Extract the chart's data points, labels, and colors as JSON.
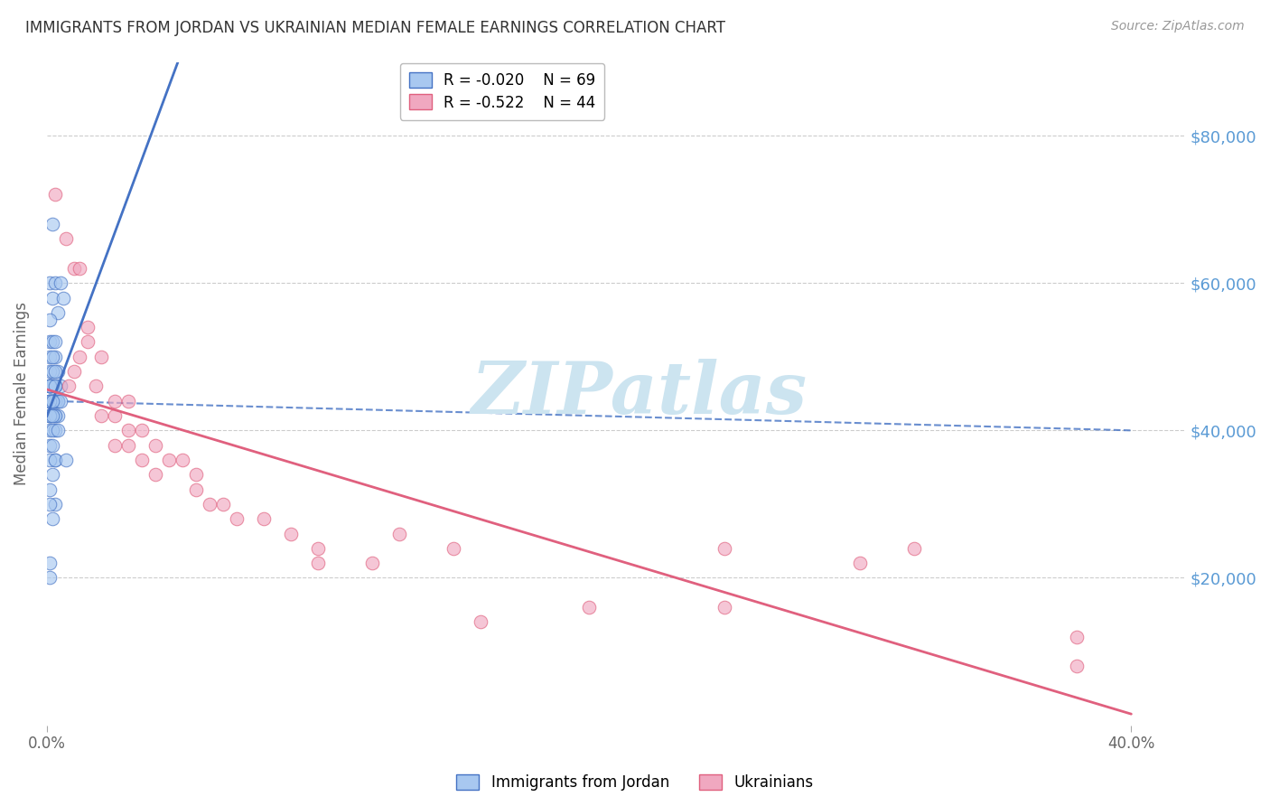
{
  "title": "IMMIGRANTS FROM JORDAN VS UKRAINIAN MEDIAN FEMALE EARNINGS CORRELATION CHART",
  "source": "Source: ZipAtlas.com",
  "ylabel": "Median Female Earnings",
  "y_ticks": [
    20000,
    40000,
    60000,
    80000
  ],
  "y_tick_labels": [
    "$20,000",
    "$40,000",
    "$60,000",
    "$80,000"
  ],
  "xlim": [
    0.0,
    0.42
  ],
  "ylim": [
    0,
    90000
  ],
  "legend1_label": "Immigrants from Jordan",
  "legend2_label": "Ukrainians",
  "R1": "-0.020",
  "N1": "69",
  "R2": "-0.522",
  "N2": "44",
  "color_jordan": "#a8c8f0",
  "color_ukraine": "#f0a8c0",
  "line_jordan_color": "#4472c4",
  "line_ukraine_color": "#e0607e",
  "jordan_points": [
    [
      0.001,
      46000
    ],
    [
      0.002,
      68000
    ],
    [
      0.001,
      60000
    ],
    [
      0.003,
      60000
    ],
    [
      0.004,
      56000
    ],
    [
      0.005,
      60000
    ],
    [
      0.002,
      58000
    ],
    [
      0.006,
      58000
    ],
    [
      0.001,
      55000
    ],
    [
      0.001,
      52000
    ],
    [
      0.002,
      52000
    ],
    [
      0.003,
      52000
    ],
    [
      0.001,
      50000
    ],
    [
      0.003,
      50000
    ],
    [
      0.002,
      50000
    ],
    [
      0.004,
      48000
    ],
    [
      0.001,
      48000
    ],
    [
      0.002,
      48000
    ],
    [
      0.003,
      48000
    ],
    [
      0.005,
      46000
    ],
    [
      0.001,
      46000
    ],
    [
      0.002,
      46000
    ],
    [
      0.003,
      46000
    ],
    [
      0.001,
      46000
    ],
    [
      0.002,
      46000
    ],
    [
      0.001,
      46000
    ],
    [
      0.001,
      46000
    ],
    [
      0.003,
      46000
    ],
    [
      0.002,
      44000
    ],
    [
      0.001,
      44000
    ],
    [
      0.003,
      44000
    ],
    [
      0.002,
      44000
    ],
    [
      0.001,
      44000
    ],
    [
      0.004,
      44000
    ],
    [
      0.002,
      44000
    ],
    [
      0.003,
      44000
    ],
    [
      0.004,
      44000
    ],
    [
      0.001,
      44000
    ],
    [
      0.002,
      44000
    ],
    [
      0.003,
      44000
    ],
    [
      0.004,
      44000
    ],
    [
      0.005,
      44000
    ],
    [
      0.001,
      44000
    ],
    [
      0.002,
      44000
    ],
    [
      0.003,
      42000
    ],
    [
      0.001,
      42000
    ],
    [
      0.002,
      42000
    ],
    [
      0.004,
      42000
    ],
    [
      0.001,
      42000
    ],
    [
      0.003,
      42000
    ],
    [
      0.001,
      42000
    ],
    [
      0.002,
      42000
    ],
    [
      0.001,
      40000
    ],
    [
      0.003,
      40000
    ],
    [
      0.002,
      40000
    ],
    [
      0.004,
      40000
    ],
    [
      0.001,
      38000
    ],
    [
      0.002,
      38000
    ],
    [
      0.003,
      36000
    ],
    [
      0.001,
      36000
    ],
    [
      0.002,
      34000
    ],
    [
      0.001,
      32000
    ],
    [
      0.003,
      30000
    ],
    [
      0.001,
      30000
    ],
    [
      0.002,
      28000
    ],
    [
      0.001,
      22000
    ],
    [
      0.003,
      36000
    ],
    [
      0.007,
      36000
    ],
    [
      0.001,
      20000
    ]
  ],
  "ukraine_points": [
    [
      0.003,
      72000
    ],
    [
      0.007,
      66000
    ],
    [
      0.01,
      62000
    ],
    [
      0.012,
      62000
    ],
    [
      0.015,
      54000
    ],
    [
      0.015,
      52000
    ],
    [
      0.008,
      46000
    ],
    [
      0.01,
      48000
    ],
    [
      0.02,
      50000
    ],
    [
      0.012,
      50000
    ],
    [
      0.018,
      46000
    ],
    [
      0.025,
      44000
    ],
    [
      0.03,
      44000
    ],
    [
      0.02,
      42000
    ],
    [
      0.025,
      42000
    ],
    [
      0.03,
      40000
    ],
    [
      0.035,
      40000
    ],
    [
      0.025,
      38000
    ],
    [
      0.03,
      38000
    ],
    [
      0.035,
      36000
    ],
    [
      0.04,
      38000
    ],
    [
      0.045,
      36000
    ],
    [
      0.04,
      34000
    ],
    [
      0.05,
      36000
    ],
    [
      0.055,
      34000
    ],
    [
      0.055,
      32000
    ],
    [
      0.06,
      30000
    ],
    [
      0.065,
      30000
    ],
    [
      0.07,
      28000
    ],
    [
      0.08,
      28000
    ],
    [
      0.09,
      26000
    ],
    [
      0.1,
      24000
    ],
    [
      0.12,
      22000
    ],
    [
      0.15,
      24000
    ],
    [
      0.2,
      16000
    ],
    [
      0.25,
      16000
    ],
    [
      0.1,
      22000
    ],
    [
      0.25,
      24000
    ],
    [
      0.3,
      22000
    ],
    [
      0.32,
      24000
    ],
    [
      0.38,
      12000
    ],
    [
      0.13,
      26000
    ],
    [
      0.16,
      14000
    ],
    [
      0.38,
      8000
    ]
  ],
  "background_color": "#ffffff",
  "grid_color": "#cccccc",
  "title_color": "#333333",
  "y_label_color": "#5b9bd5",
  "watermark_color": "#cce4f0",
  "watermark_text": "ZIPatlas"
}
